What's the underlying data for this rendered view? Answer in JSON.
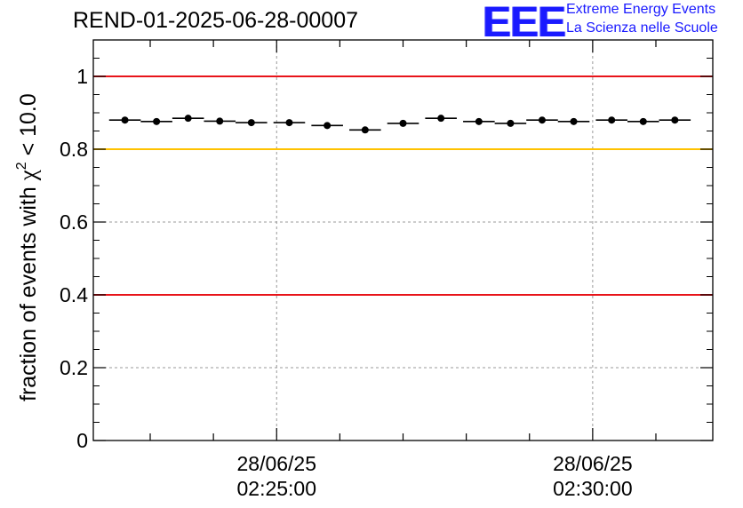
{
  "chart_data": {
    "type": "scatter",
    "title": "REND-01-2025-06-28-00007",
    "ylabel": "fraction of events with",
    "ylabel_symbol": "χ",
    "ylabel_exponent": "2",
    "ylabel_cut": "< 10.0",
    "xlabel": "",
    "ylim": [
      0,
      1.1
    ],
    "yticks": [
      0,
      0.2,
      0.4,
      0.6,
      0.8,
      1
    ],
    "ytick_labels": [
      "0",
      "0.2",
      "0.4",
      "0.6",
      "0.8",
      "1"
    ],
    "xlim_minutes": [
      2.1,
      11.9
    ],
    "xticks": [
      {
        "minute": 5.0,
        "date": "28/06/25",
        "time": "02:25:00"
      },
      {
        "minute": 10.0,
        "date": "28/06/25",
        "time": "02:30:00"
      }
    ],
    "bin_width_minutes": 0.5,
    "points": {
      "x_minutes": [
        2.6,
        3.1,
        3.6,
        4.1,
        4.6,
        5.2,
        5.8,
        6.4,
        7.0,
        7.6,
        8.2,
        8.7,
        9.2,
        9.7,
        10.3,
        10.8,
        11.3
      ],
      "y": [
        0.88,
        0.876,
        0.885,
        0.877,
        0.873,
        0.873,
        0.865,
        0.853,
        0.871,
        0.885,
        0.876,
        0.871,
        0.88,
        0.876,
        0.88,
        0.876,
        0.88
      ]
    },
    "reference_lines": [
      {
        "y": 1.0,
        "color": "#e8141a"
      },
      {
        "y": 0.8,
        "color": "#ffc200"
      },
      {
        "y": 0.4,
        "color": "#e8141a"
      }
    ],
    "grid": true
  },
  "logo": {
    "mark": "EEE",
    "line1": "Extreme Energy Events",
    "line2": "La Scienza nelle Scuole",
    "color": "#1a1aff"
  }
}
